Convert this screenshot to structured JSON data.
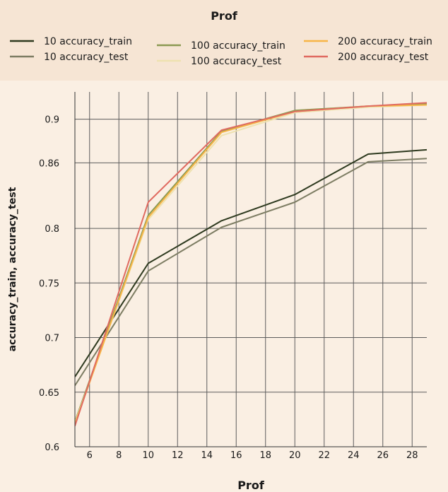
{
  "chart_data": {
    "type": "line",
    "title": "",
    "legend_title": "Prof",
    "xlabel": "Prof",
    "ylabel": "accuracy_train, accuracy_test",
    "xlim": [
      5,
      29
    ],
    "ylim": [
      0.6,
      0.925
    ],
    "x_ticks": [
      6,
      8,
      10,
      12,
      14,
      16,
      18,
      20,
      22,
      24,
      26,
      28
    ],
    "y_ticks": [
      0.6,
      0.65,
      0.7,
      0.75,
      0.8,
      0.86,
      0.9
    ],
    "y_tick_labels": [
      "0.6",
      "0.65",
      "0.7",
      "0.75",
      "0.8",
      "0.86",
      "0.9"
    ],
    "grid": true,
    "legend_position": "top",
    "series": [
      {
        "name": "10 accuracy_train",
        "color": "#2e3a1f",
        "x": [
          5,
          10,
          15,
          20,
          25,
          29
        ],
        "y": [
          0.664,
          0.768,
          0.807,
          0.831,
          0.868,
          0.872
        ]
      },
      {
        "name": "10 accuracy_test",
        "color": "#7d7d63",
        "x": [
          5,
          10,
          15,
          20,
          25,
          29
        ],
        "y": [
          0.656,
          0.761,
          0.801,
          0.824,
          0.861,
          0.864
        ]
      },
      {
        "name": "100 accuracy_train",
        "color": "#8b9a52",
        "x": [
          5,
          10,
          15,
          20,
          25,
          29
        ],
        "y": [
          0.623,
          0.812,
          0.889,
          0.908,
          0.912,
          0.914
        ]
      },
      {
        "name": "100 accuracy_test",
        "color": "#eee2b0",
        "x": [
          5,
          10,
          15,
          20,
          25,
          29
        ],
        "y": [
          0.622,
          0.808,
          0.885,
          0.906,
          0.911,
          0.913
        ]
      },
      {
        "name": "200 accuracy_train",
        "color": "#f7b547",
        "x": [
          5,
          10,
          15,
          20,
          25,
          29
        ],
        "y": [
          0.621,
          0.81,
          0.888,
          0.907,
          0.912,
          0.913
        ]
      },
      {
        "name": "200 accuracy_test",
        "color": "#e06a60",
        "x": [
          5,
          10,
          15,
          20,
          25,
          29
        ],
        "y": [
          0.619,
          0.824,
          0.89,
          0.907,
          0.912,
          0.915
        ]
      }
    ]
  }
}
